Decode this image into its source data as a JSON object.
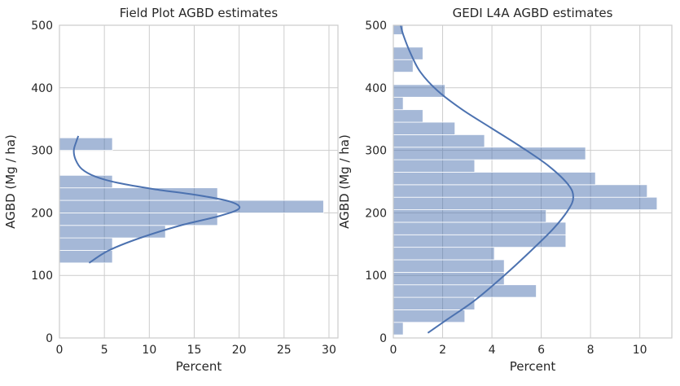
{
  "chart_data": [
    {
      "type": "histogram",
      "orientation": "horizontal",
      "title": "Field Plot AGBD estimates",
      "xlabel": "Percent",
      "ylabel": "AGBD (Mg / ha)",
      "xlim": [
        0,
        31
      ],
      "ylim": [
        0,
        500
      ],
      "xticks": [
        0,
        5,
        10,
        15,
        20,
        25,
        30
      ],
      "yticks": [
        0,
        100,
        200,
        300,
        400,
        500
      ],
      "bins": [
        {
          "y0": 120,
          "y1": 140,
          "value": 5.9
        },
        {
          "y0": 140,
          "y1": 160,
          "value": 5.9
        },
        {
          "y0": 160,
          "y1": 180,
          "value": 11.8
        },
        {
          "y0": 180,
          "y1": 200,
          "value": 17.6
        },
        {
          "y0": 200,
          "y1": 220,
          "value": 29.4
        },
        {
          "y0": 220,
          "y1": 240,
          "value": 17.6
        },
        {
          "y0": 240,
          "y1": 260,
          "value": 5.9
        },
        {
          "y0": 260,
          "y1": 280,
          "value": 0
        },
        {
          "y0": 280,
          "y1": 300,
          "value": 0
        },
        {
          "y0": 300,
          "y1": 320,
          "value": 5.9
        }
      ],
      "kde": [
        [
          3.3,
          120
        ],
        [
          5.5,
          140
        ],
        [
          9.0,
          160
        ],
        [
          13.5,
          180
        ],
        [
          17.8,
          195
        ],
        [
          20.0,
          207
        ],
        [
          19.0,
          218
        ],
        [
          15.5,
          228
        ],
        [
          10.5,
          238
        ],
        [
          6.5,
          248
        ],
        [
          4.0,
          258
        ],
        [
          2.5,
          270
        ],
        [
          1.8,
          285
        ],
        [
          1.6,
          300
        ],
        [
          1.9,
          315
        ],
        [
          2.1,
          323
        ]
      ]
    },
    {
      "type": "histogram",
      "orientation": "horizontal",
      "title": "GEDI L4A AGBD estimates",
      "xlabel": "Percent",
      "ylabel": "AGBD (Mg / ha)",
      "xlim": [
        0,
        11.3
      ],
      "ylim": [
        0,
        500
      ],
      "xticks": [
        0,
        2,
        4,
        6,
        8,
        10
      ],
      "yticks": [
        0,
        100,
        200,
        300,
        400,
        500
      ],
      "bins": [
        {
          "y0": 5,
          "y1": 25,
          "value": 0.4
        },
        {
          "y0": 25,
          "y1": 45,
          "value": 2.9
        },
        {
          "y0": 45,
          "y1": 65,
          "value": 3.3
        },
        {
          "y0": 65,
          "y1": 85,
          "value": 5.8
        },
        {
          "y0": 85,
          "y1": 105,
          "value": 4.5
        },
        {
          "y0": 105,
          "y1": 125,
          "value": 4.5
        },
        {
          "y0": 125,
          "y1": 145,
          "value": 4.1
        },
        {
          "y0": 145,
          "y1": 165,
          "value": 7.0
        },
        {
          "y0": 165,
          "y1": 185,
          "value": 7.0
        },
        {
          "y0": 185,
          "y1": 205,
          "value": 6.2
        },
        {
          "y0": 205,
          "y1": 225,
          "value": 10.7
        },
        {
          "y0": 225,
          "y1": 245,
          "value": 10.3
        },
        {
          "y0": 245,
          "y1": 265,
          "value": 8.2
        },
        {
          "y0": 265,
          "y1": 285,
          "value": 3.3
        },
        {
          "y0": 285,
          "y1": 305,
          "value": 7.8
        },
        {
          "y0": 305,
          "y1": 325,
          "value": 3.7
        },
        {
          "y0": 325,
          "y1": 345,
          "value": 2.5
        },
        {
          "y0": 345,
          "y1": 365,
          "value": 1.2
        },
        {
          "y0": 365,
          "y1": 385,
          "value": 0.4
        },
        {
          "y0": 385,
          "y1": 405,
          "value": 2.1
        },
        {
          "y0": 405,
          "y1": 425,
          "value": 0
        },
        {
          "y0": 425,
          "y1": 445,
          "value": 0.8
        },
        {
          "y0": 445,
          "y1": 465,
          "value": 1.2
        },
        {
          "y0": 465,
          "y1": 485,
          "value": 0
        },
        {
          "y0": 485,
          "y1": 505,
          "value": 0.4
        }
      ],
      "kde": [
        [
          1.4,
          8
        ],
        [
          2.2,
          30
        ],
        [
          3.3,
          60
        ],
        [
          4.5,
          100
        ],
        [
          5.6,
          140
        ],
        [
          6.5,
          175
        ],
        [
          7.1,
          205
        ],
        [
          7.3,
          225
        ],
        [
          7.1,
          245
        ],
        [
          6.3,
          275
        ],
        [
          5.2,
          305
        ],
        [
          4.0,
          335
        ],
        [
          2.8,
          365
        ],
        [
          1.8,
          395
        ],
        [
          1.1,
          425
        ],
        [
          0.7,
          455
        ],
        [
          0.4,
          485
        ],
        [
          0.3,
          500
        ]
      ]
    }
  ]
}
